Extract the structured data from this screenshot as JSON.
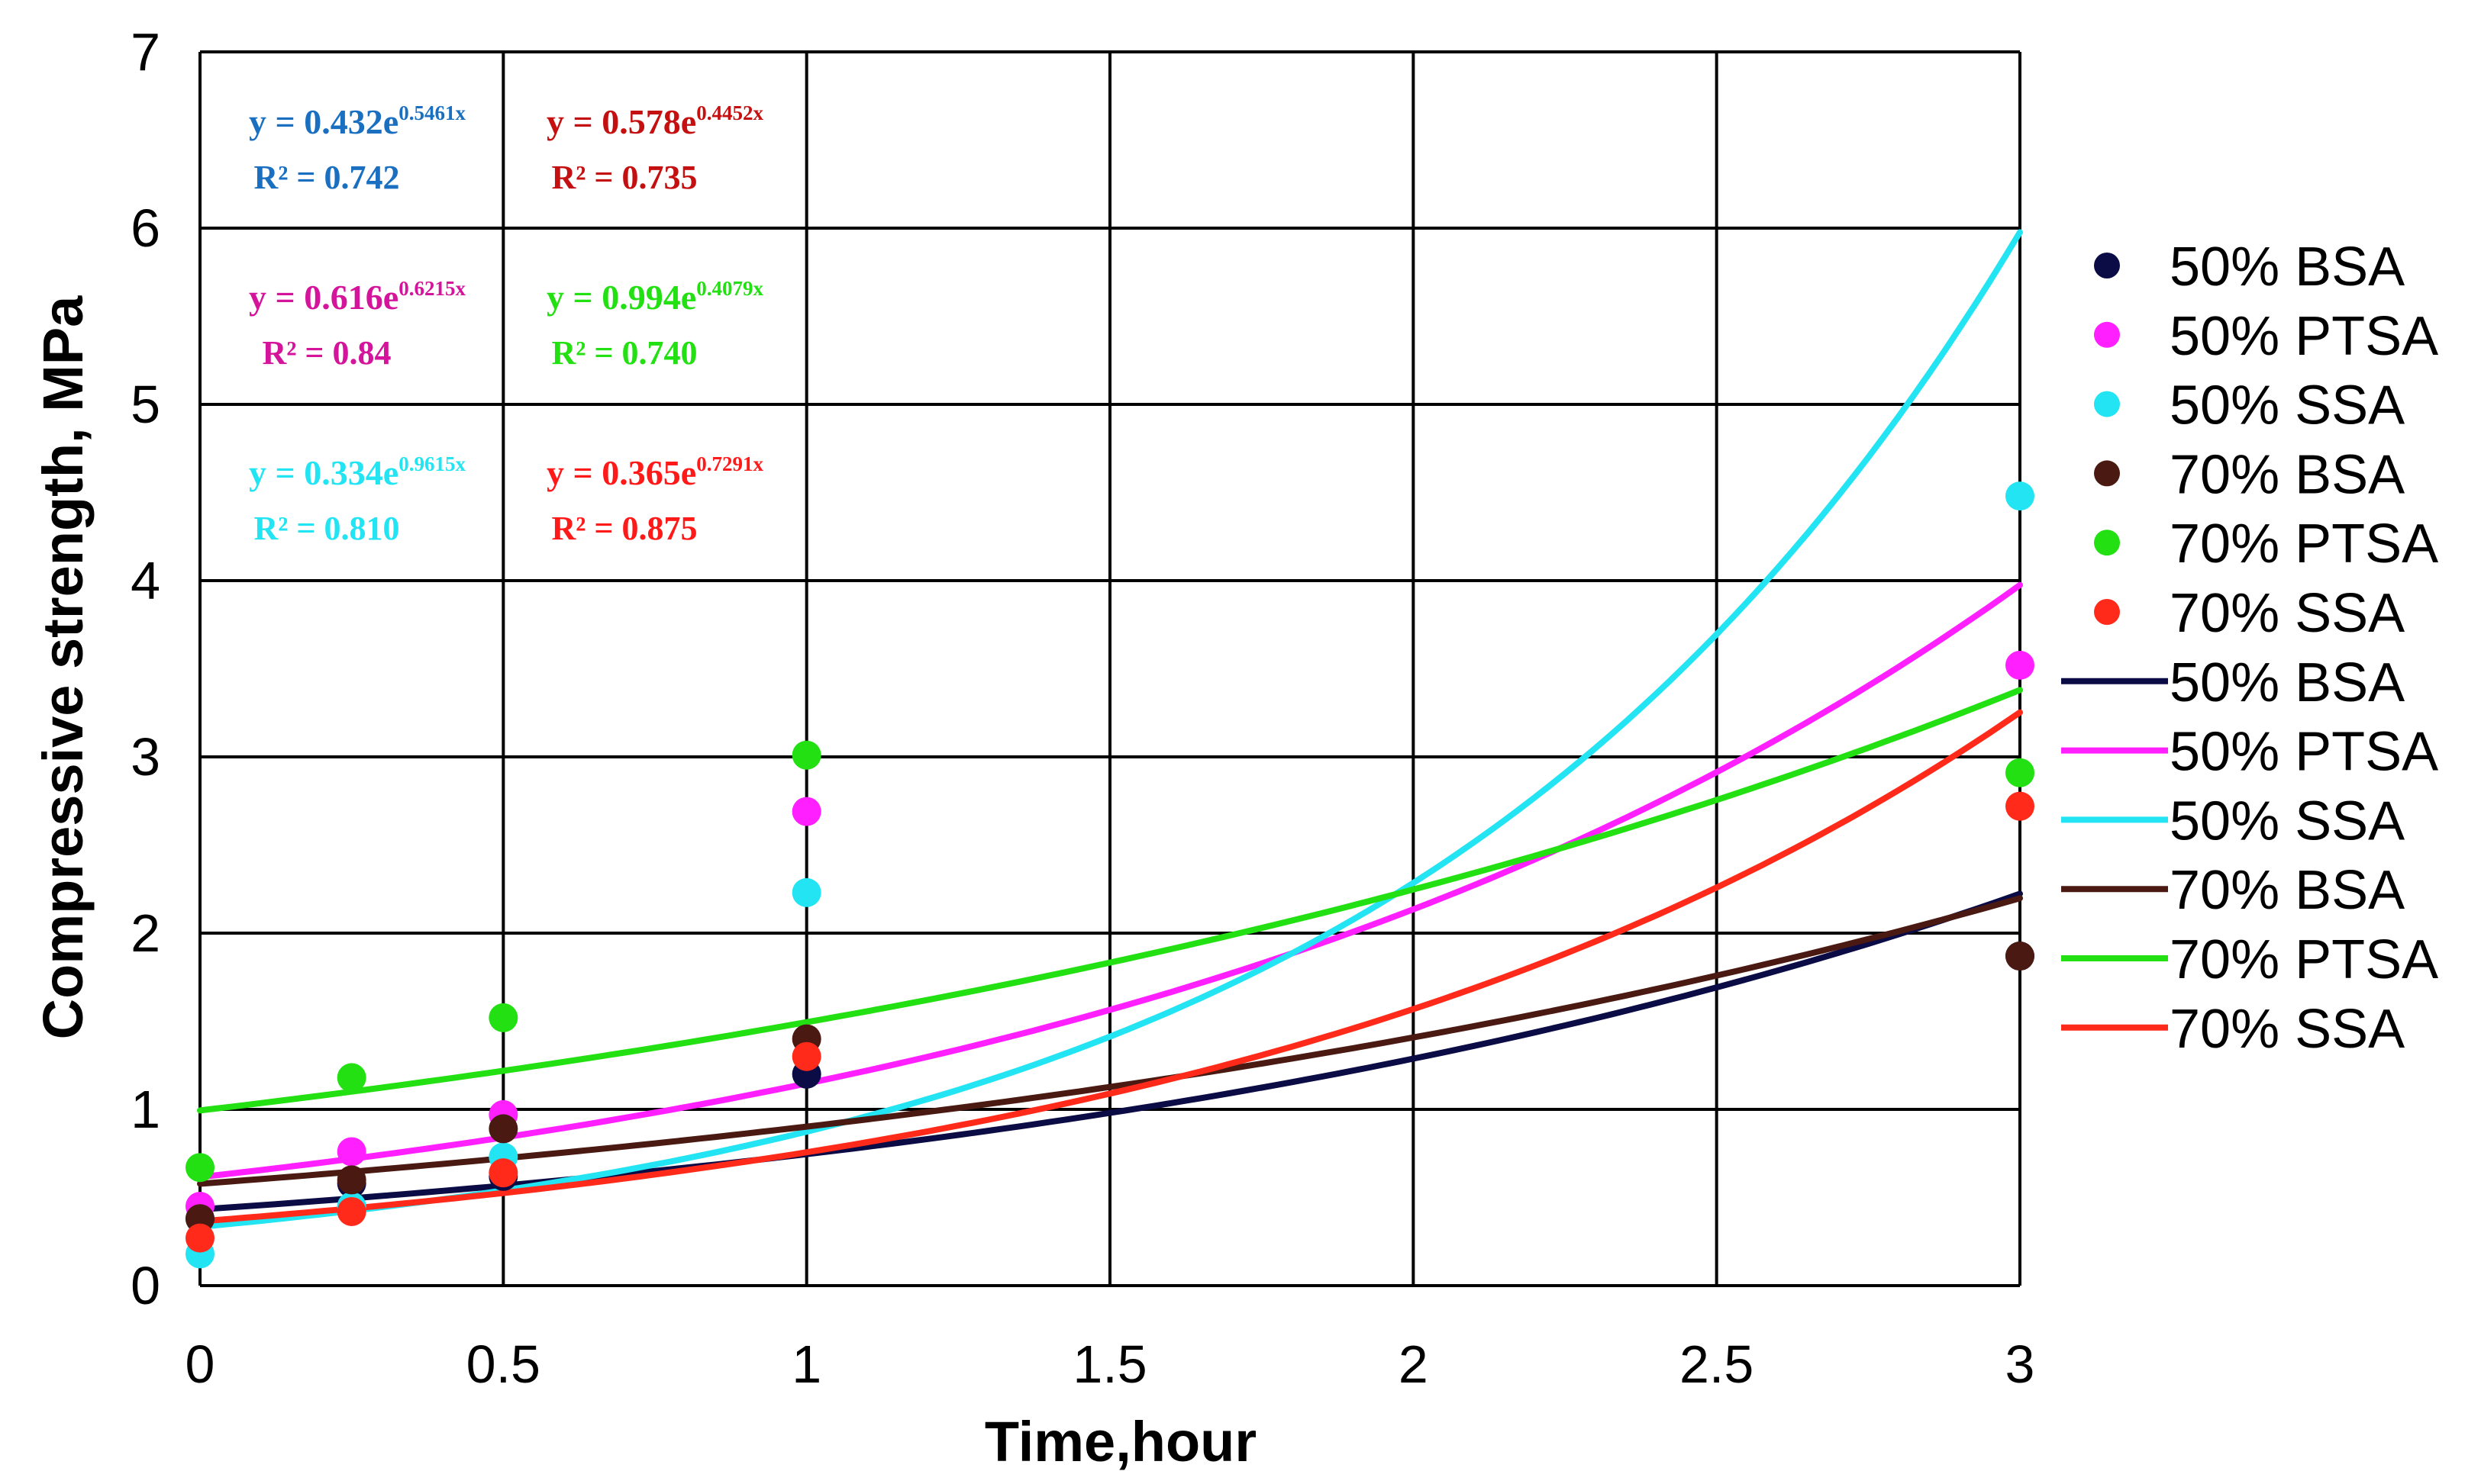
{
  "chart_data": {
    "type": "scatter",
    "title": "",
    "xlabel": "Time,hour",
    "ylabel": "Compressive strength, MPa",
    "xlim": [
      0,
      3
    ],
    "ylim": [
      0,
      7
    ],
    "xticks": [
      0,
      0.5,
      1,
      1.5,
      2,
      2.5,
      3
    ],
    "xtick_labels": [
      "0",
      "0.5",
      "1",
      "1.5",
      "2",
      "2.5",
      "3"
    ],
    "yticks": [
      0,
      1,
      2,
      3,
      4,
      5,
      6,
      7
    ],
    "ytick_labels": [
      "0",
      "1",
      "2",
      "3",
      "4",
      "5",
      "6",
      "7"
    ],
    "grid": true,
    "legend_position": "right",
    "series": [
      {
        "name": "50% BSA",
        "color": "#0b0b45",
        "x": [
          0,
          0.25,
          0.5,
          1,
          3
        ],
        "values": [
          0.38,
          0.58,
          0.62,
          1.2,
          1.87
        ],
        "fit": {
          "a": 0.432,
          "b": 0.5461
        },
        "equation": "y = 0.432e",
        "exponent": "0.5461x",
        "r2": "R² = 0.742",
        "eq_color": "#1a6fc0"
      },
      {
        "name": "50% PTSA",
        "color": "#ff1fff",
        "x": [
          0,
          0.25,
          0.5,
          1,
          3
        ],
        "values": [
          0.45,
          0.76,
          0.97,
          2.69,
          3.52
        ],
        "fit": {
          "a": 0.616,
          "b": 0.6215
        },
        "equation": "y = 0.616e",
        "exponent": "0.6215x",
        "r2": "R² = 0.84",
        "eq_color": "#d4149a"
      },
      {
        "name": "50% SSA",
        "color": "#22e4f2",
        "x": [
          0,
          0.25,
          0.5,
          1,
          3
        ],
        "values": [
          0.18,
          0.45,
          0.73,
          2.23,
          4.48
        ],
        "fit": {
          "a": 0.334,
          "b": 0.9615
        },
        "equation": "y = 0.334e",
        "exponent": "0.9615x",
        "r2": "R² = 0.810",
        "eq_color": "#22e4f2"
      },
      {
        "name": "70% BSA",
        "color": "#4a1a12",
        "x": [
          0,
          0.25,
          0.5,
          1,
          3
        ],
        "values": [
          0.38,
          0.6,
          0.89,
          1.4,
          1.87
        ],
        "fit": {
          "a": 0.578,
          "b": 0.4452
        },
        "equation": "y = 0.578e",
        "exponent": "0.4452x",
        "r2": "R² = 0.735",
        "eq_color": "#c41010"
      },
      {
        "name": "70% PTSA",
        "color": "#22e012",
        "x": [
          0,
          0.25,
          0.5,
          1,
          3
        ],
        "values": [
          0.67,
          1.18,
          1.52,
          3.01,
          2.91
        ],
        "fit": {
          "a": 0.994,
          "b": 0.4079
        },
        "equation": "y = 0.994e",
        "exponent": "0.4079x",
        "r2": "R² = 0.740",
        "eq_color": "#22e012"
      },
      {
        "name": "70% SSA",
        "color": "#ff2a1a",
        "x": [
          0,
          0.25,
          0.5,
          1,
          3
        ],
        "values": [
          0.27,
          0.42,
          0.64,
          1.3,
          2.72
        ],
        "fit": {
          "a": 0.365,
          "b": 0.7291
        },
        "equation": "y = 0.365e",
        "exponent": "0.7291x",
        "r2": "R² = 0.875",
        "eq_color": "#ff1a1a"
      }
    ]
  }
}
